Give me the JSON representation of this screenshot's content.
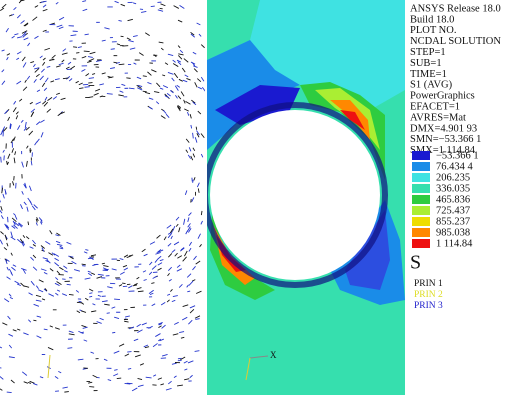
{
  "header": {
    "lines": [
      "ANSYS Release 18.0",
      "Build 18.0",
      "PLOT NO.",
      "NCDAL SOLUTION",
      "STEP=1",
      "SUB=1",
      "TIME=1",
      "S1      (AVG)",
      "PowerGraphics",
      "EFACET=1",
      "AVRES=Mat",
      "DMX=4.901 93",
      "SMN=−53.366 1",
      "SMX=1 114.84"
    ]
  },
  "legend": {
    "levels": [
      "−53.366 1",
      "76.434 4",
      "206.235",
      "336.035",
      "465.836",
      "725.437",
      "855.237",
      "985.038",
      "1 114.84"
    ],
    "symbol": "S"
  },
  "vector_legend": {
    "items": [
      "PRIN 1",
      "PRIN 2",
      "PRIN 3"
    ]
  },
  "triad": {
    "axis": "X"
  }
}
